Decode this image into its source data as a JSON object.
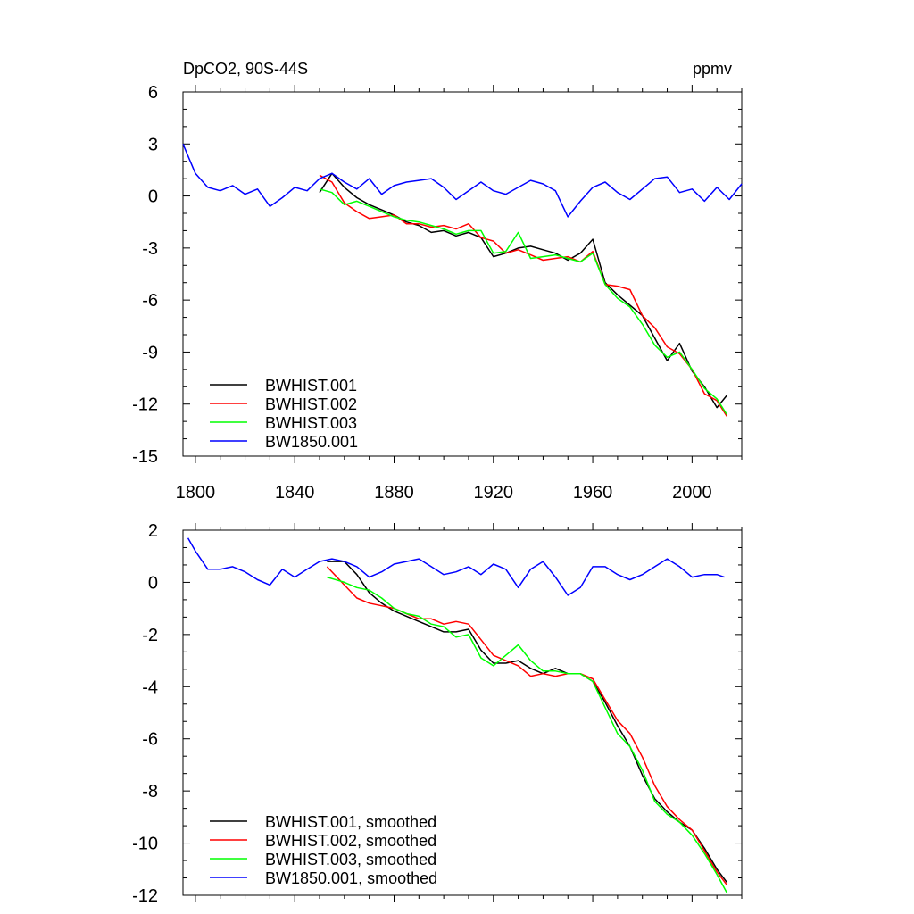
{
  "chart_data": [
    {
      "type": "line",
      "title": "DpCO2, 90S-44S",
      "units": "ppmv",
      "xlim": [
        1795,
        2020
      ],
      "ylim": [
        -15,
        6
      ],
      "yticks": [
        6,
        3,
        0,
        -3,
        -6,
        -9,
        -12,
        -15
      ],
      "ytick_labels": [
        "6",
        "3",
        "0",
        "-3",
        "-6",
        "-9",
        "-12",
        "-15"
      ],
      "xticks": [
        1800,
        1840,
        1880,
        1920,
        1960,
        2000
      ],
      "xtick_labels": [
        "1800",
        "1840",
        "1880",
        "1920",
        "1960",
        "2000"
      ],
      "legend_position": "bottom-left",
      "series": [
        {
          "name": "BWHIST.001",
          "color": "#000000",
          "x": [
            1850,
            1855,
            1860,
            1865,
            1870,
            1875,
            1880,
            1885,
            1890,
            1895,
            1900,
            1905,
            1910,
            1915,
            1920,
            1925,
            1930,
            1935,
            1940,
            1945,
            1950,
            1955,
            1960,
            1965,
            1970,
            1975,
            1980,
            1985,
            1990,
            1995,
            2000,
            2005,
            2010,
            2014
          ],
          "y": [
            0.2,
            1.3,
            0.5,
            -0.1,
            -0.5,
            -0.8,
            -1.1,
            -1.5,
            -1.7,
            -2.1,
            -2.0,
            -2.3,
            -2.1,
            -2.4,
            -3.5,
            -3.3,
            -3.0,
            -2.9,
            -3.1,
            -3.3,
            -3.7,
            -3.3,
            -2.5,
            -5.0,
            -5.7,
            -6.3,
            -6.9,
            -8.2,
            -9.5,
            -8.5,
            -10.1,
            -11.0,
            -12.2,
            -11.5
          ]
        },
        {
          "name": "BWHIST.002",
          "color": "#ff0000",
          "x": [
            1850,
            1855,
            1860,
            1865,
            1870,
            1875,
            1880,
            1885,
            1890,
            1895,
            1900,
            1905,
            1910,
            1915,
            1920,
            1925,
            1930,
            1935,
            1940,
            1945,
            1950,
            1955,
            1960,
            1965,
            1970,
            1975,
            1980,
            1985,
            1990,
            1995,
            2000,
            2005,
            2010,
            2014
          ],
          "y": [
            1.2,
            0.8,
            -0.4,
            -0.9,
            -1.3,
            -1.2,
            -1.1,
            -1.6,
            -1.6,
            -1.8,
            -1.7,
            -1.9,
            -1.6,
            -2.4,
            -2.6,
            -3.3,
            -3.1,
            -3.4,
            -3.7,
            -3.6,
            -3.5,
            -3.8,
            -3.2,
            -5.1,
            -5.2,
            -5.4,
            -6.9,
            -7.6,
            -8.7,
            -9.1,
            -10.0,
            -11.4,
            -11.8,
            -12.7
          ]
        },
        {
          "name": "BWHIST.003",
          "color": "#00ff00",
          "x": [
            1850,
            1855,
            1860,
            1865,
            1870,
            1875,
            1880,
            1885,
            1890,
            1895,
            1900,
            1905,
            1910,
            1915,
            1920,
            1925,
            1930,
            1935,
            1940,
            1945,
            1950,
            1955,
            1960,
            1965,
            1970,
            1975,
            1980,
            1985,
            1990,
            1995,
            2000,
            2005,
            2010,
            2014
          ],
          "y": [
            0.4,
            0.2,
            -0.5,
            -0.3,
            -0.6,
            -0.9,
            -1.2,
            -1.4,
            -1.5,
            -1.7,
            -1.9,
            -2.2,
            -2.0,
            -2.0,
            -3.3,
            -3.2,
            -2.1,
            -3.6,
            -3.5,
            -3.4,
            -3.6,
            -3.8,
            -3.3,
            -5.1,
            -5.9,
            -6.4,
            -7.4,
            -8.6,
            -9.3,
            -9.0,
            -10.0,
            -11.1,
            -11.7,
            -12.6
          ]
        },
        {
          "name": "BW1850.001",
          "color": "#0000ff",
          "x": [
            1795,
            1800,
            1805,
            1810,
            1815,
            1820,
            1825,
            1830,
            1835,
            1840,
            1845,
            1850,
            1855,
            1860,
            1865,
            1870,
            1875,
            1880,
            1885,
            1890,
            1895,
            1900,
            1905,
            1910,
            1915,
            1920,
            1925,
            1930,
            1935,
            1940,
            1945,
            1950,
            1955,
            1960,
            1965,
            1970,
            1975,
            1980,
            1985,
            1990,
            1995,
            2000,
            2005,
            2010,
            2015,
            2020
          ],
          "y": [
            3.0,
            1.3,
            0.5,
            0.3,
            0.6,
            0.1,
            0.4,
            -0.6,
            -0.1,
            0.5,
            0.3,
            1.0,
            1.3,
            0.8,
            0.4,
            1.0,
            0.1,
            0.6,
            0.8,
            0.9,
            1.0,
            0.5,
            -0.2,
            0.3,
            0.8,
            0.3,
            0.1,
            0.5,
            0.9,
            0.7,
            0.3,
            -1.2,
            -0.3,
            0.5,
            0.8,
            0.2,
            -0.2,
            0.4,
            1.0,
            1.1,
            0.2,
            0.4,
            -0.3,
            0.5,
            -0.2,
            0.7
          ]
        }
      ]
    },
    {
      "type": "line",
      "title": "",
      "xlim": [
        1795,
        2020
      ],
      "ylim": [
        -12,
        2
      ],
      "yticks": [
        2,
        0,
        -2,
        -4,
        -6,
        -8,
        -10,
        -12
      ],
      "ytick_labels": [
        "2",
        "0",
        "-2",
        "-4",
        "-6",
        "-8",
        "-10",
        "-12"
      ],
      "xticks": [
        1800,
        1840,
        1880,
        1920,
        1960,
        2000
      ],
      "xtick_labels": [],
      "legend_position": "bottom-left",
      "series": [
        {
          "name": "BWHIST.001, smoothed",
          "color": "#000000",
          "x": [
            1853,
            1860,
            1865,
            1870,
            1875,
            1880,
            1885,
            1890,
            1895,
            1900,
            1905,
            1910,
            1915,
            1920,
            1925,
            1930,
            1935,
            1940,
            1945,
            1950,
            1955,
            1960,
            1965,
            1970,
            1975,
            1980,
            1985,
            1990,
            1995,
            2000,
            2005,
            2010,
            2014
          ],
          "y": [
            0.8,
            0.8,
            0.3,
            -0.4,
            -0.8,
            -1.1,
            -1.3,
            -1.5,
            -1.7,
            -1.9,
            -1.9,
            -1.8,
            -2.6,
            -3.1,
            -3.1,
            -3.0,
            -3.3,
            -3.5,
            -3.3,
            -3.5,
            -3.5,
            -3.8,
            -4.6,
            -5.5,
            -6.3,
            -7.4,
            -8.3,
            -8.8,
            -9.2,
            -9.5,
            -10.2,
            -11.0,
            -11.5
          ]
        },
        {
          "name": "BWHIST.002, smoothed",
          "color": "#ff0000",
          "x": [
            1853,
            1860,
            1865,
            1870,
            1875,
            1880,
            1885,
            1890,
            1895,
            1900,
            1905,
            1910,
            1915,
            1920,
            1925,
            1930,
            1935,
            1940,
            1945,
            1950,
            1955,
            1960,
            1965,
            1970,
            1975,
            1980,
            1985,
            1990,
            1995,
            2000,
            2005,
            2010,
            2014
          ],
          "y": [
            0.6,
            -0.1,
            -0.6,
            -0.8,
            -0.9,
            -1.0,
            -1.2,
            -1.4,
            -1.4,
            -1.6,
            -1.5,
            -1.6,
            -2.2,
            -2.8,
            -3.0,
            -3.2,
            -3.6,
            -3.5,
            -3.6,
            -3.5,
            -3.5,
            -3.7,
            -4.5,
            -5.3,
            -5.8,
            -6.7,
            -7.8,
            -8.6,
            -9.1,
            -9.5,
            -10.3,
            -11.1,
            -11.6
          ]
        },
        {
          "name": "BWHIST.003, smoothed",
          "color": "#00ff00",
          "x": [
            1853,
            1860,
            1865,
            1870,
            1875,
            1880,
            1885,
            1890,
            1895,
            1900,
            1905,
            1910,
            1915,
            1920,
            1925,
            1930,
            1935,
            1940,
            1945,
            1950,
            1955,
            1960,
            1965,
            1970,
            1975,
            1980,
            1985,
            1990,
            1995,
            2000,
            2005,
            2010,
            2014
          ],
          "y": [
            0.2,
            0.0,
            -0.2,
            -0.3,
            -0.6,
            -1.0,
            -1.2,
            -1.3,
            -1.6,
            -1.7,
            -2.1,
            -2.0,
            -2.9,
            -3.2,
            -2.8,
            -2.4,
            -3.0,
            -3.4,
            -3.4,
            -3.5,
            -3.5,
            -3.8,
            -4.8,
            -5.8,
            -6.3,
            -7.2,
            -8.4,
            -8.9,
            -9.2,
            -9.7,
            -10.4,
            -11.2,
            -11.9
          ]
        },
        {
          "name": "BW1850.001, smoothed",
          "color": "#0000ff",
          "x": [
            1797,
            1800,
            1805,
            1810,
            1815,
            1820,
            1825,
            1830,
            1835,
            1840,
            1845,
            1850,
            1855,
            1860,
            1865,
            1870,
            1875,
            1880,
            1885,
            1890,
            1895,
            1900,
            1905,
            1910,
            1915,
            1920,
            1925,
            1930,
            1935,
            1940,
            1945,
            1950,
            1955,
            1960,
            1965,
            1970,
            1975,
            1980,
            1985,
            1990,
            1995,
            2000,
            2005,
            2010,
            2013
          ],
          "y": [
            1.7,
            1.2,
            0.5,
            0.5,
            0.6,
            0.4,
            0.1,
            -0.1,
            0.5,
            0.2,
            0.5,
            0.8,
            0.9,
            0.8,
            0.6,
            0.2,
            0.4,
            0.7,
            0.8,
            0.9,
            0.6,
            0.3,
            0.4,
            0.6,
            0.3,
            0.7,
            0.5,
            -0.2,
            0.5,
            0.8,
            0.2,
            -0.5,
            -0.2,
            0.6,
            0.6,
            0.3,
            0.1,
            0.3,
            0.6,
            0.9,
            0.6,
            0.2,
            0.3,
            0.3,
            0.2
          ]
        }
      ]
    }
  ]
}
